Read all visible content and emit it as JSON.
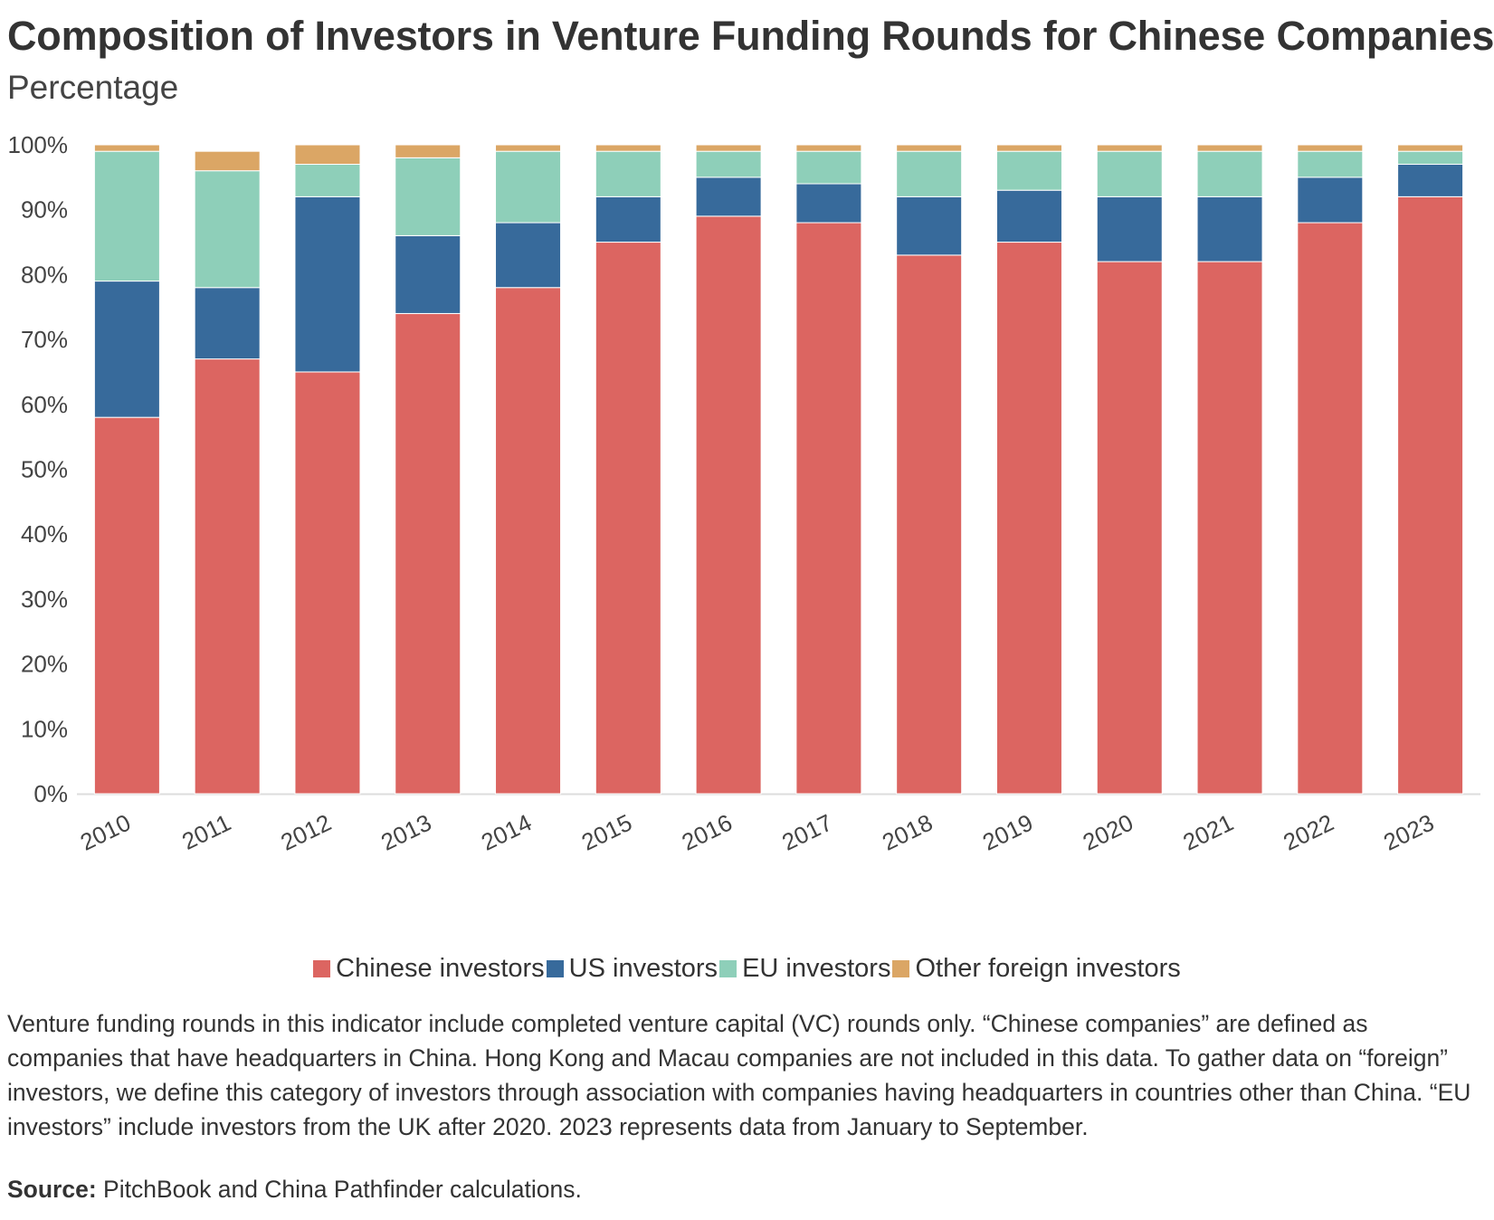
{
  "title": "Composition of Investors in Venture Funding Rounds for Chinese Companies",
  "subtitle": "Percentage",
  "note": "Venture funding rounds in this indicator include completed venture capital (VC) rounds only. “Chinese companies” are defined as companies that have headquarters in China. Hong Kong and Macau companies are not included in this data. To gather data on “foreign” investors, we define this category of investors through association with companies having headquarters in countries other than China. “EU investors” include investors from the UK after 2020. 2023 represents data from January to September.",
  "source": {
    "label": "Source:",
    "text": " PitchBook and China Pathfinder calculations."
  },
  "colors": {
    "chinese": "#dc6561",
    "us": "#376a9b",
    "eu": "#8ecfb9",
    "other": "#dba665",
    "baseline": "#dddddd",
    "text": "#333333"
  },
  "chart_data": {
    "type": "bar",
    "stacked": true,
    "title": "Composition of Investors in Venture Funding Rounds for Chinese Companies",
    "subtitle": "Percentage",
    "xlabel": "",
    "ylabel": "",
    "ylim": [
      0,
      100
    ],
    "yticks": [
      "0%",
      "10%",
      "20%",
      "30%",
      "40%",
      "50%",
      "60%",
      "70%",
      "80%",
      "90%",
      "100%"
    ],
    "grid": false,
    "legend_position": "bottom-center",
    "categories": [
      "2010",
      "2011",
      "2012",
      "2013",
      "2014",
      "2015",
      "2016",
      "2017",
      "2018",
      "2019",
      "2020",
      "2021",
      "2022",
      "2023"
    ],
    "series": [
      {
        "name": "Chinese investors",
        "color": "#dc6561",
        "values": [
          58,
          67,
          65,
          74,
          78,
          85,
          89,
          88,
          83,
          85,
          82,
          82,
          88,
          92
        ]
      },
      {
        "name": "US investors",
        "color": "#376a9b",
        "values": [
          21,
          11,
          27,
          12,
          10,
          7,
          6,
          6,
          9,
          8,
          10,
          10,
          7,
          5
        ]
      },
      {
        "name": "EU investors",
        "color": "#8ecfb9",
        "values": [
          20,
          18,
          5,
          12,
          11,
          7,
          4,
          5,
          7,
          6,
          7,
          7,
          4,
          2
        ]
      },
      {
        "name": "Other foreign investors",
        "color": "#dba665",
        "values": [
          1,
          3,
          3,
          2,
          1,
          1,
          1,
          1,
          1,
          1,
          1,
          1,
          1,
          1
        ]
      }
    ]
  }
}
